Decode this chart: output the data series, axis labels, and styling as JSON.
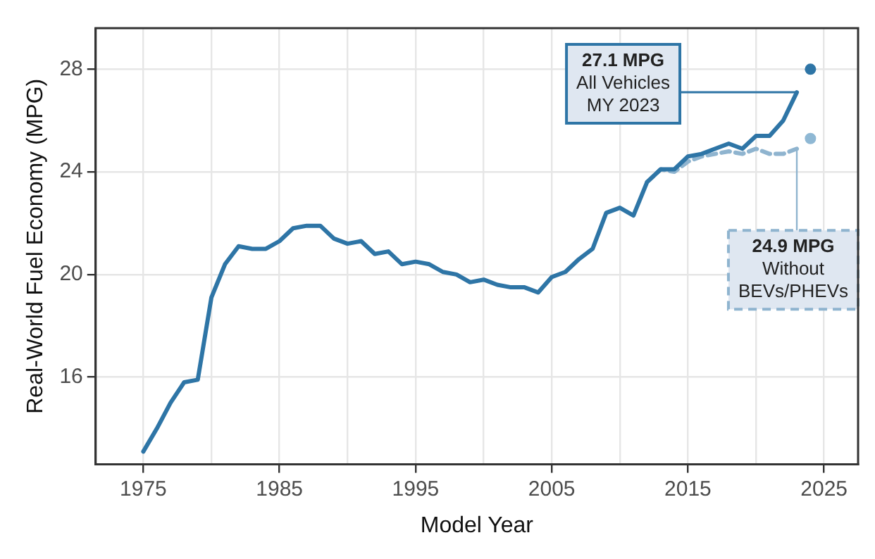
{
  "chart_data": {
    "type": "line",
    "xlabel": "Model Year",
    "ylabel": "Real-World Fuel Economy (MPG)",
    "xlim": [
      1971.5,
      2027.5
    ],
    "ylim": [
      12.6,
      29.6
    ],
    "xticks": [
      1975,
      {
        "value": 1980,
        "label": null
      },
      1985,
      {
        "value": 1990,
        "label": null
      },
      1995,
      {
        "value": 2000,
        "label": null
      },
      2005,
      {
        "value": 2010,
        "label": null
      },
      2015,
      {
        "value": 2020,
        "label": null
      },
      2025
    ],
    "yticks": [
      16,
      20,
      24,
      28
    ],
    "grid": true,
    "marker": "none",
    "series": [
      {
        "color": "#2e75a6",
        "line_style": "solid",
        "x": [
          1975,
          1976,
          1977,
          1978,
          1979,
          1980,
          1981,
          1982,
          1983,
          1984,
          1985,
          1986,
          1987,
          1988,
          1989,
          1990,
          1991,
          1992,
          1993,
          1994,
          1995,
          1996,
          1997,
          1998,
          1999,
          2000,
          2001,
          2002,
          2003,
          2004,
          2005,
          2006,
          2007,
          2008,
          2009,
          2010,
          2011,
          2012,
          2013,
          2014,
          2015,
          2016,
          2017,
          2018,
          2019,
          2020,
          2021,
          2022,
          2023
        ],
        "values": [
          13.1,
          14.0,
          15.0,
          15.8,
          15.9,
          19.1,
          20.4,
          21.1,
          21.0,
          21.0,
          21.3,
          21.8,
          21.9,
          21.9,
          21.4,
          21.2,
          21.3,
          20.8,
          20.9,
          20.4,
          20.5,
          20.4,
          20.1,
          20.0,
          19.7,
          19.8,
          19.6,
          19.5,
          19.5,
          19.3,
          19.9,
          20.1,
          20.6,
          21.0,
          22.4,
          22.6,
          22.3,
          23.6,
          24.1,
          24.1,
          24.6,
          24.7,
          24.9,
          25.1,
          24.9,
          25.4,
          25.4,
          26.0,
          27.1
        ]
      },
      {
        "color": "#8fb4cf",
        "line_style": "dashed",
        "x": [
          2012,
          2013,
          2014,
          2015,
          2016,
          2017,
          2018,
          2019,
          2020,
          2021,
          2022,
          2023
        ],
        "values": [
          23.6,
          24.1,
          24.0,
          24.4,
          24.6,
          24.7,
          24.8,
          24.7,
          24.9,
          24.7,
          24.7,
          24.9
        ]
      },
      {
        "type": "scatter",
        "marker": "circle",
        "color": "#2e75a6",
        "x": [
          2024
        ],
        "values": [
          28.0
        ]
      },
      {
        "type": "scatter",
        "marker": "circle",
        "color": "#8fb8d4",
        "x": [
          2024
        ],
        "values": [
          25.3
        ]
      }
    ],
    "annotations": [
      {
        "text": "27.1 MPG\nAll Vehicles\nMY 2023",
        "x": 2023,
        "y": 27.1
      },
      {
        "text": "24.9 MPG\nWithout\nBEVs/PHEVs",
        "x": 2023,
        "y": 24.9
      }
    ]
  }
}
